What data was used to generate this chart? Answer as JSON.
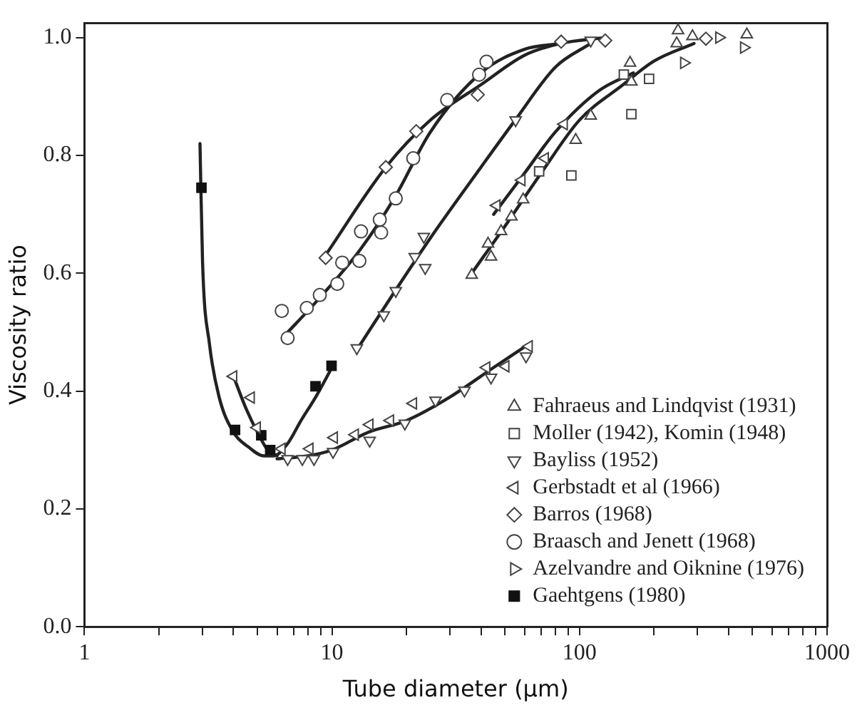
{
  "chart_data": {
    "type": "scatter",
    "xlabel": "Tube diameter (µm)",
    "ylabel": "Viscosity ratio",
    "log": "x",
    "grid": false,
    "legend": "bottom right",
    "xlim": [
      1,
      1000
    ],
    "xticks": [
      1,
      {
        "value": 2,
        "label": null
      },
      {
        "value": 3,
        "label": null
      },
      {
        "value": 4,
        "label": null
      },
      {
        "value": 5,
        "label": null
      },
      {
        "value": 6,
        "label": null
      },
      {
        "value": 7,
        "label": null
      },
      {
        "value": 8,
        "label": null
      },
      {
        "value": 9,
        "label": null
      },
      10,
      {
        "value": 20,
        "label": null
      },
      {
        "value": 30,
        "label": null
      },
      {
        "value": 40,
        "label": null
      },
      {
        "value": 50,
        "label": null
      },
      {
        "value": 60,
        "label": null
      },
      {
        "value": 70,
        "label": null
      },
      {
        "value": 80,
        "label": null
      },
      {
        "value": 90,
        "label": null
      },
      100,
      {
        "value": 200,
        "label": null
      },
      {
        "value": 300,
        "label": null
      },
      {
        "value": 400,
        "label": null
      },
      {
        "value": 500,
        "label": null
      },
      {
        "value": 600,
        "label": null
      },
      {
        "value": 700,
        "label": null
      },
      {
        "value": 800,
        "label": null
      },
      {
        "value": 900,
        "label": null
      },
      1000
    ],
    "ylim": [
      0,
      1.025
    ],
    "yticks": [
      {
        "value": 0,
        "label": "0.0"
      },
      {
        "value": 0.2,
        "label": "0.2"
      },
      {
        "value": 0.4,
        "label": "0.4"
      },
      {
        "value": 0.6,
        "label": "0.6"
      },
      {
        "value": 0.8,
        "label": "0.8"
      },
      {
        "value": 1,
        "label": "1.0"
      }
    ],
    "series": [
      {
        "name": "Fahraeus and Lindqvist (1931)",
        "marker": "triangle",
        "color": "#444444",
        "x": [
          36.7,
          43.9,
          42.7,
          48.2,
          53.1,
          59.2,
          96.5,
          111,
          160,
          162,
          250,
          247,
          286,
          474
        ],
        "values": [
          0.597,
          0.628,
          0.65,
          0.671,
          0.696,
          0.725,
          0.826,
          0.867,
          0.957,
          0.925,
          1.012,
          0.99,
          1.002,
          1.005
        ]
      },
      {
        "name": "Moller (1942), Komin (1948)",
        "marker": "square",
        "color": "#444444",
        "x": [
          68.7,
          92.7,
          162,
          151,
          191
        ],
        "values": [
          0.773,
          0.766,
          0.87,
          0.937,
          0.93
        ]
      },
      {
        "name": "Bayliss (1952)",
        "marker": "triangle-down",
        "color": "#444444",
        "x": [
          12.6,
          16.2,
          18.1,
          21.6,
          23.8,
          23.5,
          55.2,
          111,
          6.62,
          7.59,
          8.46,
          10.1,
          14.2,
          19.7,
          26.2,
          34.3,
          43.9,
          60.8
        ],
        "values": [
          0.473,
          0.529,
          0.57,
          0.628,
          0.609,
          0.662,
          0.86,
          0.995,
          0.285,
          0.285,
          0.285,
          0.297,
          0.316,
          0.345,
          0.384,
          0.401,
          0.423,
          0.459
        ]
      },
      {
        "name": "Gerbstadt et al (1966)",
        "marker": "triangle-left",
        "color": "#444444",
        "x": [
          4.0,
          4.71,
          4.98,
          6.27,
          8.13,
          10.2,
          12.4,
          14.2,
          17.2,
          21.3,
          42.1,
          50.3,
          62.5,
          46.3,
          58.4,
          72.6,
          86.6
        ],
        "values": [
          0.425,
          0.389,
          0.338,
          0.302,
          0.302,
          0.321,
          0.326,
          0.343,
          0.35,
          0.379,
          0.44,
          0.442,
          0.476,
          0.715,
          0.758,
          0.795,
          0.853
        ]
      },
      {
        "name": "Barros (1968)",
        "marker": "diamond",
        "color": "#444444",
        "x": [
          9.43,
          16.5,
          21.9,
          38.8,
          84.3,
          127,
          324
        ],
        "values": [
          0.626,
          0.78,
          0.841,
          0.903,
          0.993,
          0.995,
          0.998
        ]
      },
      {
        "name": "Braasch and Jenett (1968)",
        "marker": "circle",
        "color": "#444444",
        "x": [
          6.27,
          6.62,
          7.91,
          8.93,
          10.5,
          11.0,
          12.9,
          13.1,
          15.6,
          15.8,
          18.1,
          21.3,
          29.2,
          39.3,
          42.1
        ],
        "values": [
          0.536,
          0.49,
          0.541,
          0.563,
          0.582,
          0.618,
          0.621,
          0.671,
          0.691,
          0.669,
          0.727,
          0.795,
          0.894,
          0.937,
          0.959
        ]
      },
      {
        "name": "Azelvandre and Oiknine (1976)",
        "marker": "triangle-right",
        "color": "#444444",
        "x": [
          366,
          461,
          264
        ],
        "values": [
          1.0,
          0.983,
          0.957
        ]
      },
      {
        "name": "Gaehtgens (1980)",
        "marker": "square",
        "color": "#111111",
        "x": [
          2.97,
          4.06,
          5.18,
          5.63,
          8.58,
          9.96
        ],
        "values": [
          0.745,
          0.334,
          0.325,
          0.3,
          0.408,
          0.443
        ]
      },
      {
        "type": "line",
        "marker": "none",
        "color": "#222222",
        "x": [
          2.93,
          3.0,
          3.2,
          3.5,
          4.0,
          4.6,
          5.3,
          5.8,
          6.6,
          7.5,
          8.6,
          10.0
        ],
        "values": [
          0.82,
          0.62,
          0.48,
          0.39,
          0.33,
          0.305,
          0.29,
          0.29,
          0.31,
          0.35,
          0.39,
          0.44
        ]
      },
      {
        "type": "line",
        "marker": "none",
        "color": "#222222",
        "x": [
          4.0,
          4.5,
          5.0,
          5.5,
          6.0
        ],
        "values": [
          0.425,
          0.37,
          0.33,
          0.3,
          0.29
        ]
      },
      {
        "type": "line",
        "marker": "none",
        "color": "#222222",
        "x": [
          6.0,
          8,
          10,
          14,
          20,
          30,
          45,
          62.5
        ],
        "values": [
          0.285,
          0.29,
          0.3,
          0.33,
          0.35,
          0.39,
          0.44,
          0.48
        ]
      },
      {
        "type": "line",
        "marker": "none",
        "color": "#222222",
        "x": [
          6.3,
          9,
          13,
          18,
          25,
          40,
          60,
          84
        ],
        "values": [
          0.49,
          0.56,
          0.64,
          0.73,
          0.84,
          0.94,
          0.98,
          0.99
        ]
      },
      {
        "type": "line",
        "marker": "none",
        "color": "#222222",
        "x": [
          9.4,
          16.5,
          25,
          40,
          60,
          84,
          127
        ],
        "values": [
          0.63,
          0.78,
          0.86,
          0.92,
          0.97,
          0.99,
          1.0
        ]
      },
      {
        "type": "line",
        "marker": "none",
        "color": "#222222",
        "x": [
          12.6,
          18,
          25,
          40,
          55,
          80,
          111
        ],
        "values": [
          0.47,
          0.57,
          0.66,
          0.78,
          0.86,
          0.95,
          0.99
        ]
      },
      {
        "type": "line",
        "marker": "none",
        "color": "#222222",
        "x": [
          45,
          60,
          80,
          120,
          165
        ],
        "values": [
          0.7,
          0.77,
          0.84,
          0.91,
          0.94
        ]
      },
      {
        "type": "line",
        "marker": "none",
        "color": "#222222",
        "x": [
          36.7,
          50,
          70,
          100,
          150,
          200,
          290
        ],
        "values": [
          0.6,
          0.68,
          0.77,
          0.86,
          0.92,
          0.96,
          0.99
        ]
      }
    ]
  }
}
